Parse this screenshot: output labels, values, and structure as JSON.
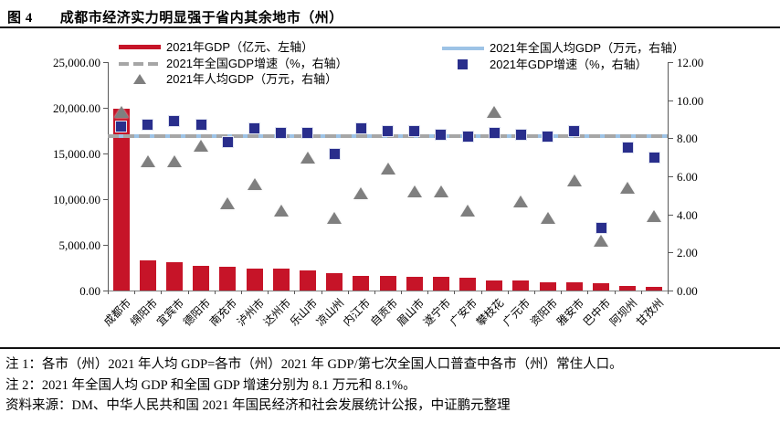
{
  "header": {
    "figure_label": "图 4",
    "title": "成都市经济实力明显强于省内其余地市（州）"
  },
  "chart_data": {
    "type": "bar",
    "subtype": "combo-bar-scatter-dual-axis",
    "categories": [
      "成都市",
      "绵阳市",
      "宜宾市",
      "德阳市",
      "南充市",
      "泸州市",
      "达州市",
      "乐山市",
      "凉山州",
      "内江市",
      "自贡市",
      "眉山市",
      "遂宁市",
      "广安市",
      "攀枝花",
      "广元市",
      "资阳市",
      "雅安市",
      "巴中市",
      "阿坝州",
      "甘孜州"
    ],
    "series": [
      {
        "name": "2021年GDP（亿元、左轴）",
        "type": "bar",
        "axis": "left",
        "color": "#C61428",
        "values": [
          19917,
          3350,
          3148,
          2657,
          2602,
          2406,
          2352,
          2205,
          1901,
          1606,
          1601,
          1548,
          1466,
          1419,
          1134,
          1132,
          918,
          904,
          760,
          462,
          441
        ]
      },
      {
        "name": "2021年GDP增速（%，右轴）",
        "type": "scatter-square",
        "axis": "right",
        "color": "#292E8C",
        "values": [
          8.6,
          8.7,
          8.9,
          8.7,
          7.8,
          8.5,
          8.3,
          8.3,
          7.2,
          8.5,
          8.4,
          8.4,
          8.2,
          8.1,
          8.3,
          8.2,
          8.1,
          8.4,
          3.3,
          7.5,
          7.0
        ]
      },
      {
        "name": "2021年人均GDP（万元，右轴）",
        "type": "scatter-triangle",
        "axis": "right",
        "color": "#7F7F7F",
        "values": [
          9.4,
          6.8,
          6.8,
          7.6,
          4.6,
          5.6,
          4.2,
          7.0,
          3.8,
          5.1,
          6.4,
          5.2,
          5.2,
          4.2,
          9.4,
          4.7,
          3.8,
          5.8,
          2.6,
          5.4,
          3.9
        ]
      },
      {
        "name": "2021年全国人均GDP（万元，右轴）",
        "type": "refline-solid",
        "axis": "right",
        "color": "#9DC3E6",
        "value": 8.1
      },
      {
        "name": "2021年全国GDP增速（%，右轴）",
        "type": "refline-dashed",
        "axis": "right",
        "color": "#A6A6A6",
        "value": 8.1
      }
    ],
    "left_axis": {
      "min": 0,
      "max": 25000,
      "tick_labels": [
        "25,000.00",
        "20,000.00",
        "15,000.00",
        "10,000.00",
        "5,000.00",
        "0.00"
      ],
      "tick_values": [
        25000,
        20000,
        15000,
        10000,
        5000,
        0
      ]
    },
    "right_axis": {
      "min": 0,
      "max": 12,
      "tick_labels": [
        "12.00",
        "10.00",
        "8.00",
        "6.00",
        "4.00",
        "2.00",
        "0.00"
      ],
      "tick_values": [
        12,
        10,
        8,
        6,
        4,
        2,
        0
      ]
    },
    "grid": false,
    "legend_position": "top"
  },
  "notes": {
    "note1": "注 1：各市（州）2021 年人均 GDP=各市（州）2021 年 GDP/第七次全国人口普查中各市（州）常住人口。",
    "note2": "注 2：2021 年全国人均 GDP 和全国 GDP 增速分别为 8.1 万元和 8.1%。",
    "source": "资料来源：DM、中华人民共和国 2021 年国民经济和社会发展统计公报，中证鹏元整理"
  }
}
